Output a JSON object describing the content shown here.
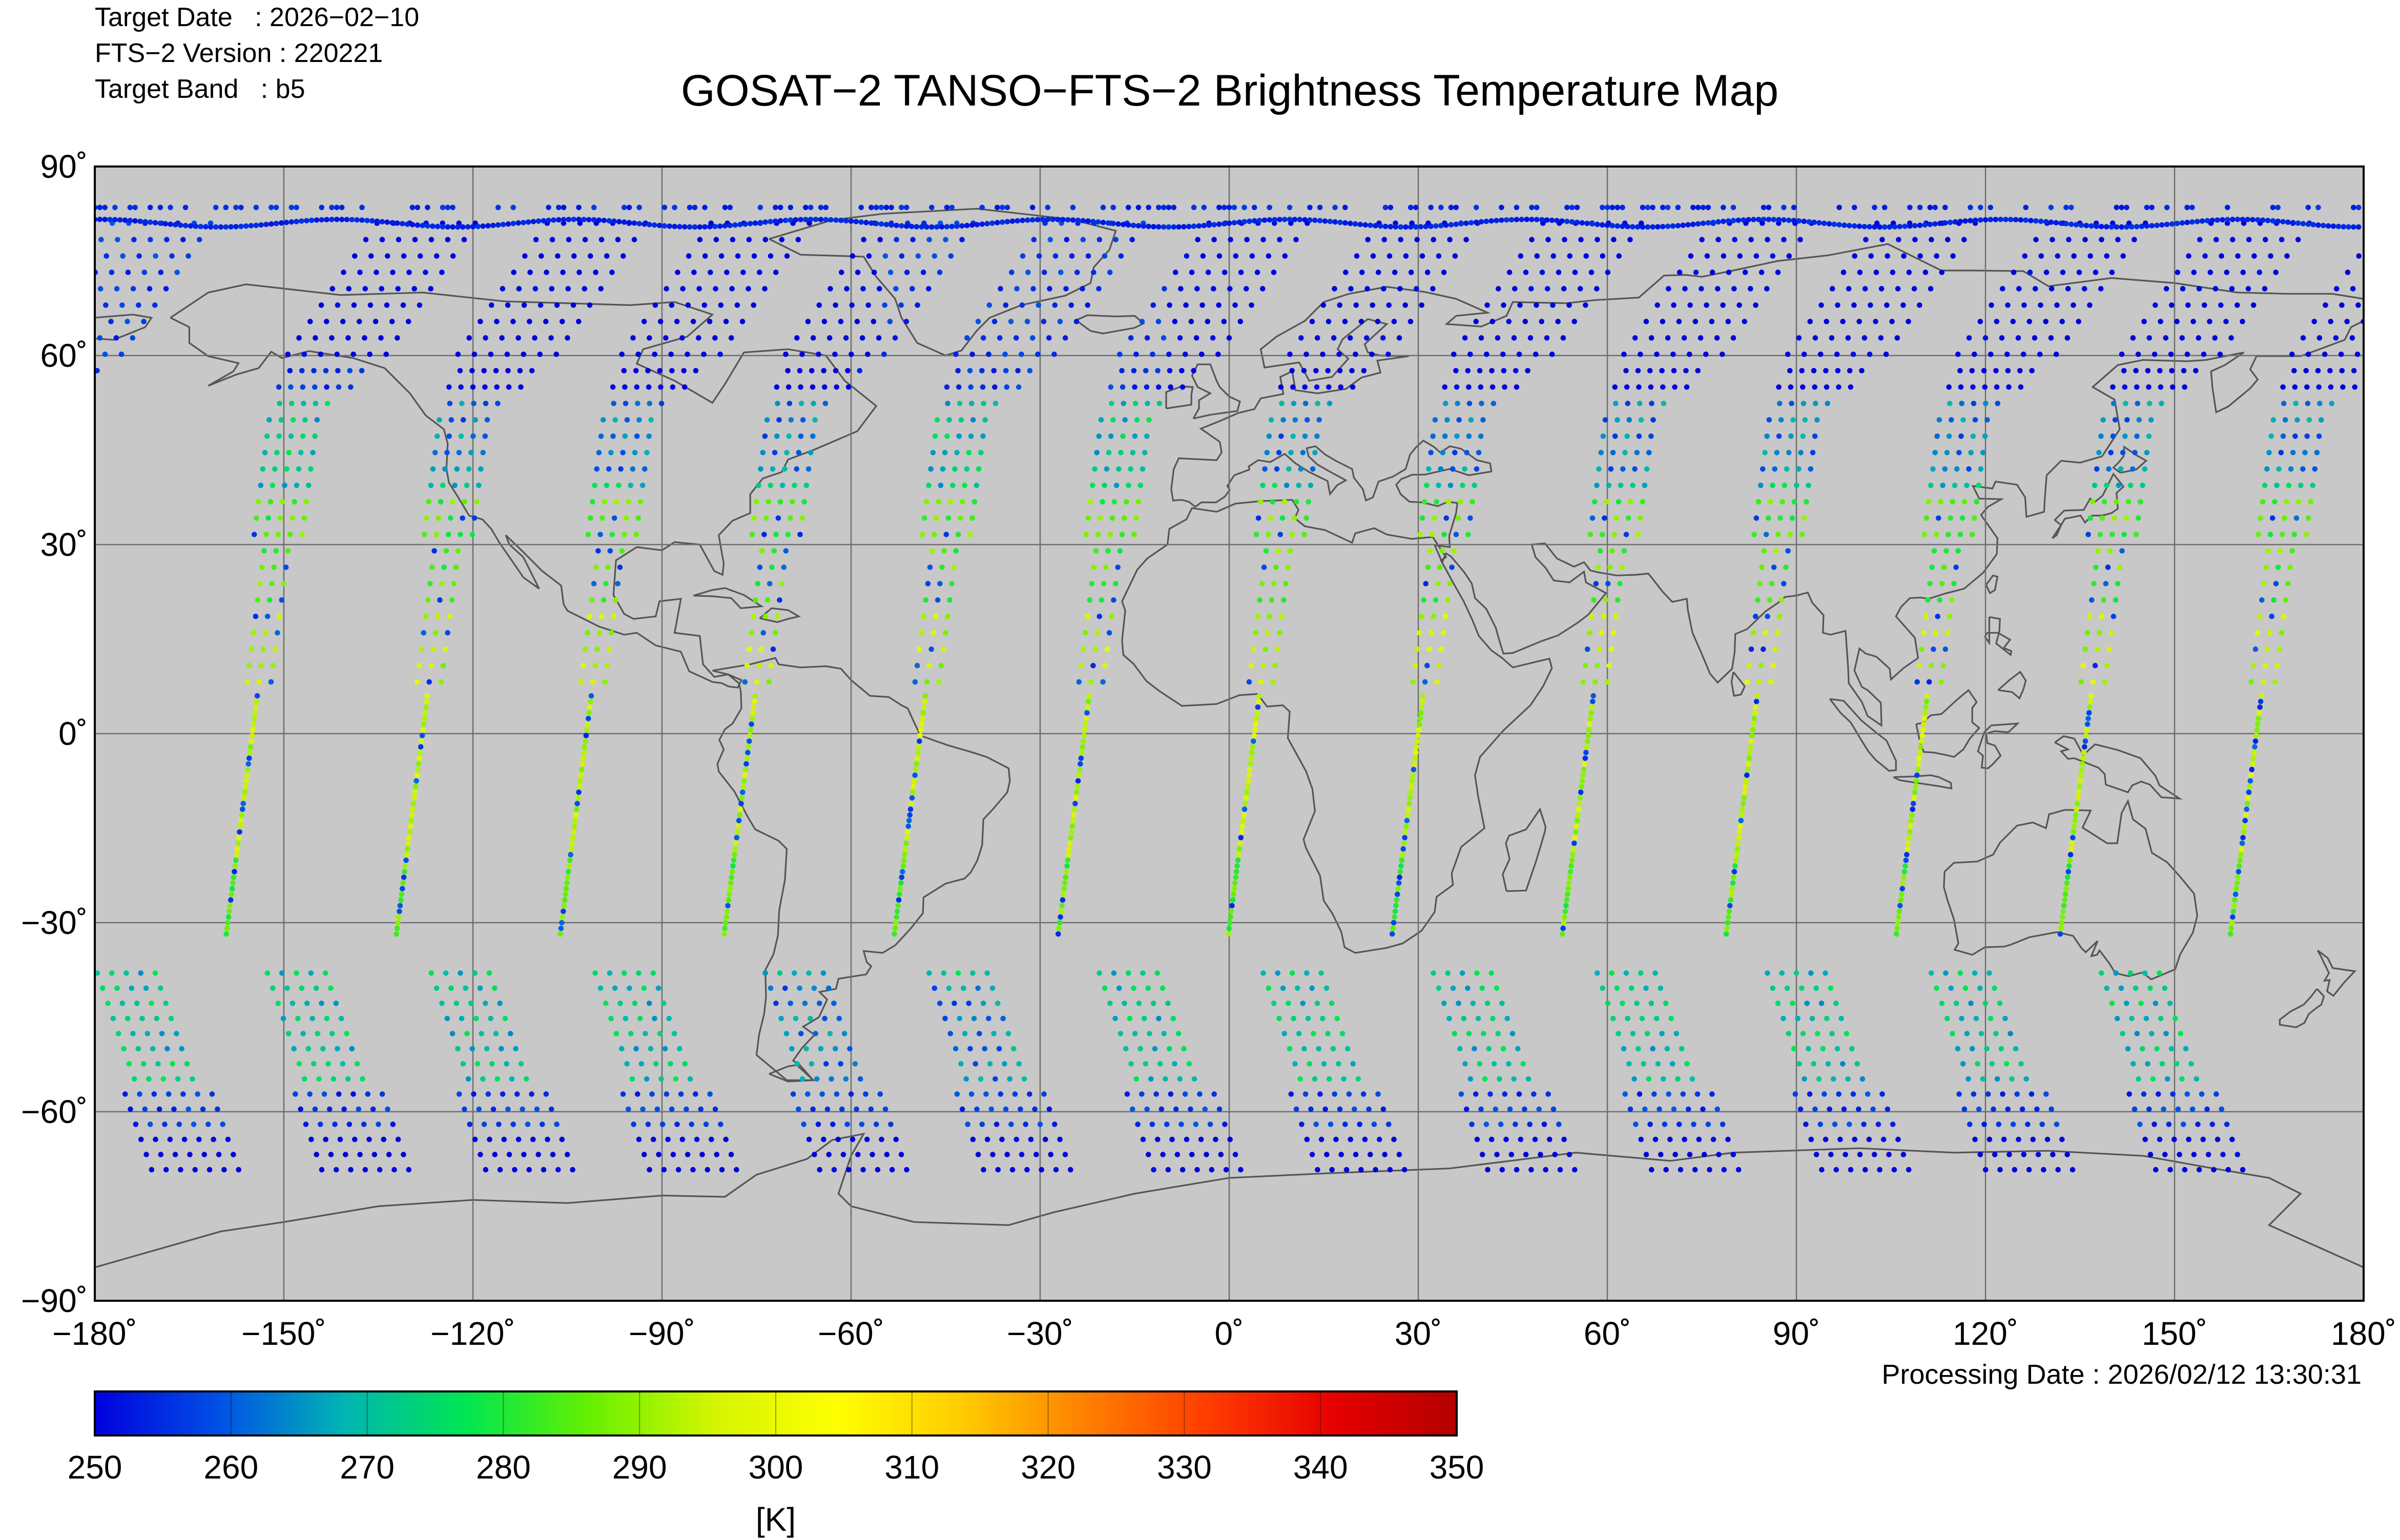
{
  "header": {
    "target_date": "Target Date   : 2026−02−10",
    "version": "FTS−2 Version : 220221",
    "band": "Target Band   : b5"
  },
  "title": "GOSAT−2 TANSO−FTS−2 Brightness Temperature Map",
  "processing_date": "Processing Date : 2026/02/12 13:30:31",
  "map": {
    "lon_range": [
      -180,
      180
    ],
    "lat_range": [
      -90,
      90
    ],
    "lon_ticks": [
      "−180˚",
      "−150˚",
      "−120˚",
      "−90˚",
      "−60˚",
      "−30˚",
      "0˚",
      "30˚",
      "60˚",
      "90˚",
      "120˚",
      "150˚",
      "180˚"
    ],
    "lat_ticks": [
      "90˚",
      "60˚",
      "30˚",
      "0˚",
      "−30˚",
      "−60˚",
      "−90˚"
    ],
    "grid": true,
    "background_color": "#c8c8c8",
    "coastline_color": "#555555",
    "orbits_descending_lon_at_equator": [
      -155,
      -128,
      -102,
      -76,
      -49,
      -23,
      4,
      30,
      57,
      83,
      110,
      136,
      163
    ],
    "polar_track_lat": 81
  },
  "colorbar": {
    "min": 250,
    "max": 350,
    "labels": [
      "250",
      "260",
      "270",
      "280",
      "290",
      "300",
      "310",
      "320",
      "330",
      "340",
      "350"
    ],
    "unit": "[K]",
    "colors": [
      "#0000dd",
      "#0050e6",
      "#00b4b4",
      "#00e650",
      "#66f000",
      "#d4f500",
      "#ffff00",
      "#ffcc00",
      "#ff8000",
      "#ff3c00",
      "#e60000",
      "#b40000"
    ]
  }
}
